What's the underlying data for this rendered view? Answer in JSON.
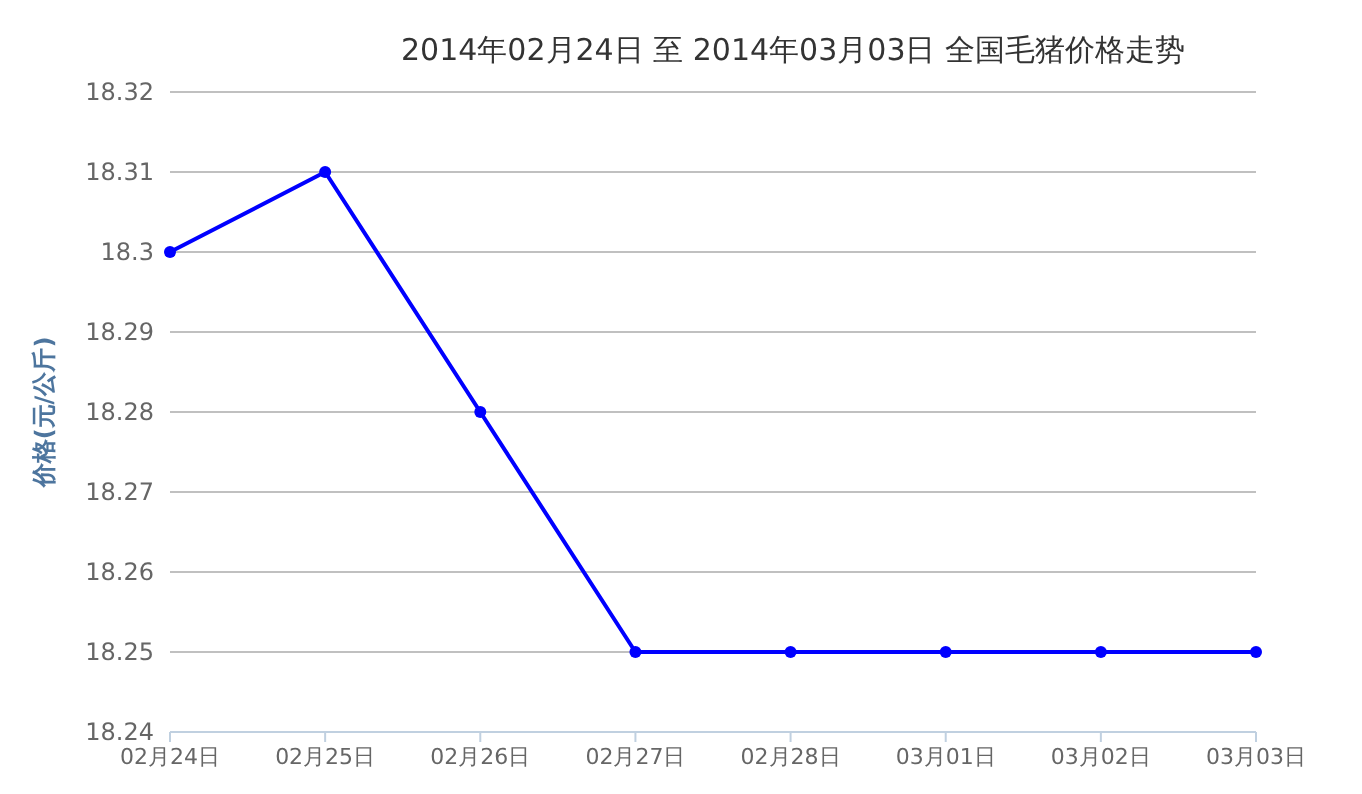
{
  "chart_data": {
    "type": "line",
    "title": "2014年02月24日 至 2014年03月03日 全国毛猪价格走势",
    "ylabel": "价格(元/公斤)",
    "categories": [
      "02月24日",
      "02月25日",
      "02月26日",
      "02月27日",
      "02月28日",
      "03月01日",
      "03月02日",
      "03月03日"
    ],
    "series": [
      {
        "color": "#0000ff",
        "values": [
          18.3,
          18.31,
          18.28,
          18.25,
          18.25,
          18.25,
          18.25,
          18.25
        ]
      }
    ],
    "ylim": [
      18.24,
      18.32
    ],
    "yticks": [
      18.24,
      18.25,
      18.26,
      18.27,
      18.28,
      18.29,
      18.3,
      18.31,
      18.32
    ],
    "grid": "y",
    "marker": "circle",
    "line_style": "solid"
  }
}
